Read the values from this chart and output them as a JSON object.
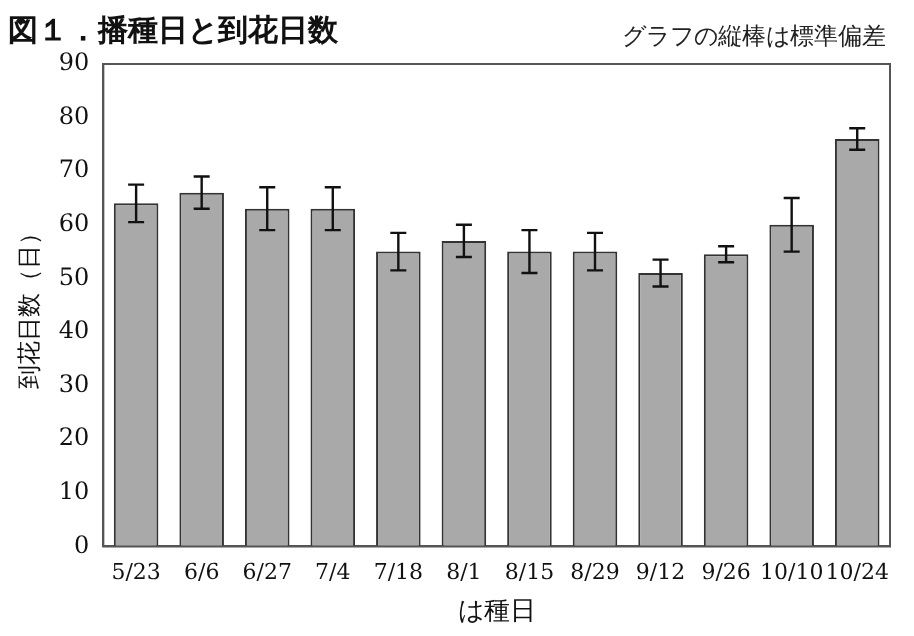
{
  "chart_data": {
    "type": "bar",
    "title": "図１．播種日と到花日数",
    "annotations": [
      "グラフの縦棒は標準偏差"
    ],
    "xlabel": "は種日",
    "ylabel": "到花日数（日）",
    "categories": [
      "5/23",
      "6/6",
      "6/27",
      "7/4",
      "7/18",
      "8/1",
      "8/15",
      "8/29",
      "9/12",
      "9/26",
      "10/10",
      "10/24"
    ],
    "values": [
      64,
      66,
      63,
      63,
      55,
      57,
      55,
      55,
      51,
      54.5,
      60,
      76
    ],
    "errors": [
      3.5,
      3,
      4,
      4,
      3.5,
      3,
      4,
      3.5,
      2.5,
      1.5,
      5,
      2
    ],
    "color": "#a9a9a9",
    "ylim": [
      0,
      90
    ],
    "yticks": [
      0,
      10,
      20,
      30,
      40,
      50,
      60,
      70,
      80,
      90
    ],
    "grid": false,
    "legend": false
  }
}
